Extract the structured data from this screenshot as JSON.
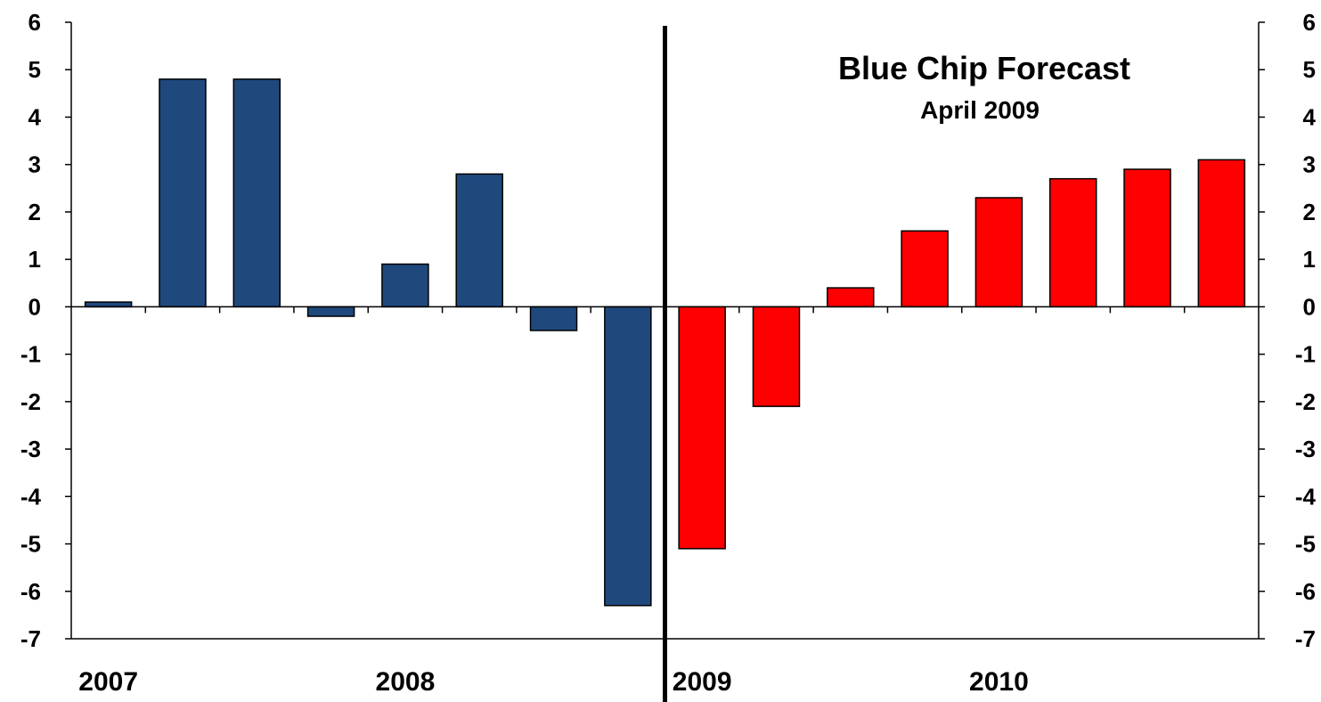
{
  "chart_data": {
    "type": "bar",
    "title": "Blue Chip Forecast",
    "subtitle": "April 2009",
    "xlabel": "",
    "ylabel": "",
    "ylim": [
      -7,
      6
    ],
    "yticks": [
      6,
      5,
      4,
      3,
      2,
      1,
      0,
      -1,
      -2,
      -3,
      -4,
      -5,
      -6,
      -7
    ],
    "secondary_y_axis": true,
    "grid": false,
    "year_labels": [
      "2007",
      "2008",
      "2009",
      "2010"
    ],
    "categories": [
      "2007 Q1",
      "2007 Q2",
      "2007 Q3",
      "2007 Q4",
      "2008 Q1",
      "2008 Q2",
      "2008 Q3",
      "2008 Q4",
      "2009 Q1",
      "2009 Q2",
      "2009 Q3",
      "2009 Q4",
      "2010 Q1",
      "2010 Q2",
      "2010 Q3",
      "2010 Q4"
    ],
    "series": [
      {
        "color": "#1F497D",
        "values": [
          0.1,
          4.8,
          4.8,
          -0.2,
          0.9,
          2.8,
          -0.5,
          -6.3,
          null,
          null,
          null,
          null,
          null,
          null,
          null,
          null
        ]
      },
      {
        "color": "#FF0000",
        "values": [
          null,
          null,
          null,
          null,
          null,
          null,
          null,
          null,
          -5.1,
          -2.1,
          0.4,
          1.6,
          2.3,
          2.7,
          2.9,
          3.1
        ]
      }
    ],
    "divider_after_category": 7
  }
}
